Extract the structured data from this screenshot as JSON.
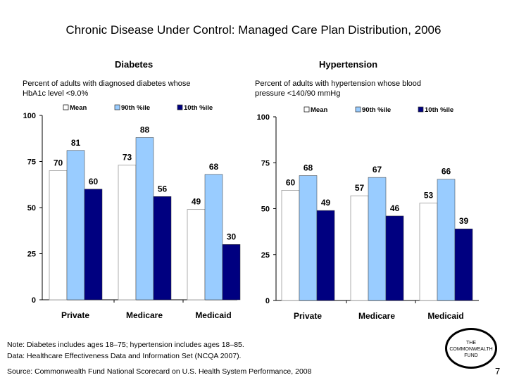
{
  "title": "Chronic Disease Under Control: Managed Care Plan Distribution, 2006",
  "note_lines": [
    "Note: Diabetes includes ages 18–75; hypertension includes ages 18–85.",
    "Data: Healthcare Effectiveness Data and Information Set (NCQA 2007)."
  ],
  "source": "Source: Commonwealth Fund National Scorecard on U.S. Health System Performance, 2008",
  "logo_lines": [
    "THE",
    "COMMONWEALTH",
    "FUND"
  ],
  "page_number": "7",
  "colors": {
    "mean": "#ffffff",
    "p90": "#99ccff",
    "p10": "#000080"
  },
  "chart_data": [
    {
      "type": "bar",
      "title": "Diabetes",
      "subtitle": "Percent of adults with diagnosed diabetes whose HbA1c level <9.0%",
      "categories": [
        "Private",
        "Medicare",
        "Medicaid"
      ],
      "series": [
        {
          "name": "Mean",
          "values": [
            70,
            73,
            49
          ]
        },
        {
          "name": "90th %ile",
          "values": [
            81,
            88,
            68
          ]
        },
        {
          "name": "10th %ile",
          "values": [
            60,
            56,
            30
          ]
        }
      ],
      "yticks": [
        "0",
        "25",
        "50",
        "75",
        "100"
      ],
      "ylim": [
        0,
        100
      ],
      "legend": "top"
    },
    {
      "type": "bar",
      "title": "Hypertension",
      "subtitle": "Percent of adults with hypertension whose blood pressure <140/90 mmHg",
      "categories": [
        "Private",
        "Medicare",
        "Medicaid"
      ],
      "series": [
        {
          "name": "Mean",
          "values": [
            60,
            57,
            53
          ]
        },
        {
          "name": "90th %ile",
          "values": [
            68,
            67,
            66
          ]
        },
        {
          "name": "10th %ile",
          "values": [
            49,
            46,
            39
          ]
        }
      ],
      "yticks": [
        "0",
        "25",
        "50",
        "75",
        "100"
      ],
      "ylim": [
        0,
        100
      ],
      "legend": "top"
    }
  ]
}
